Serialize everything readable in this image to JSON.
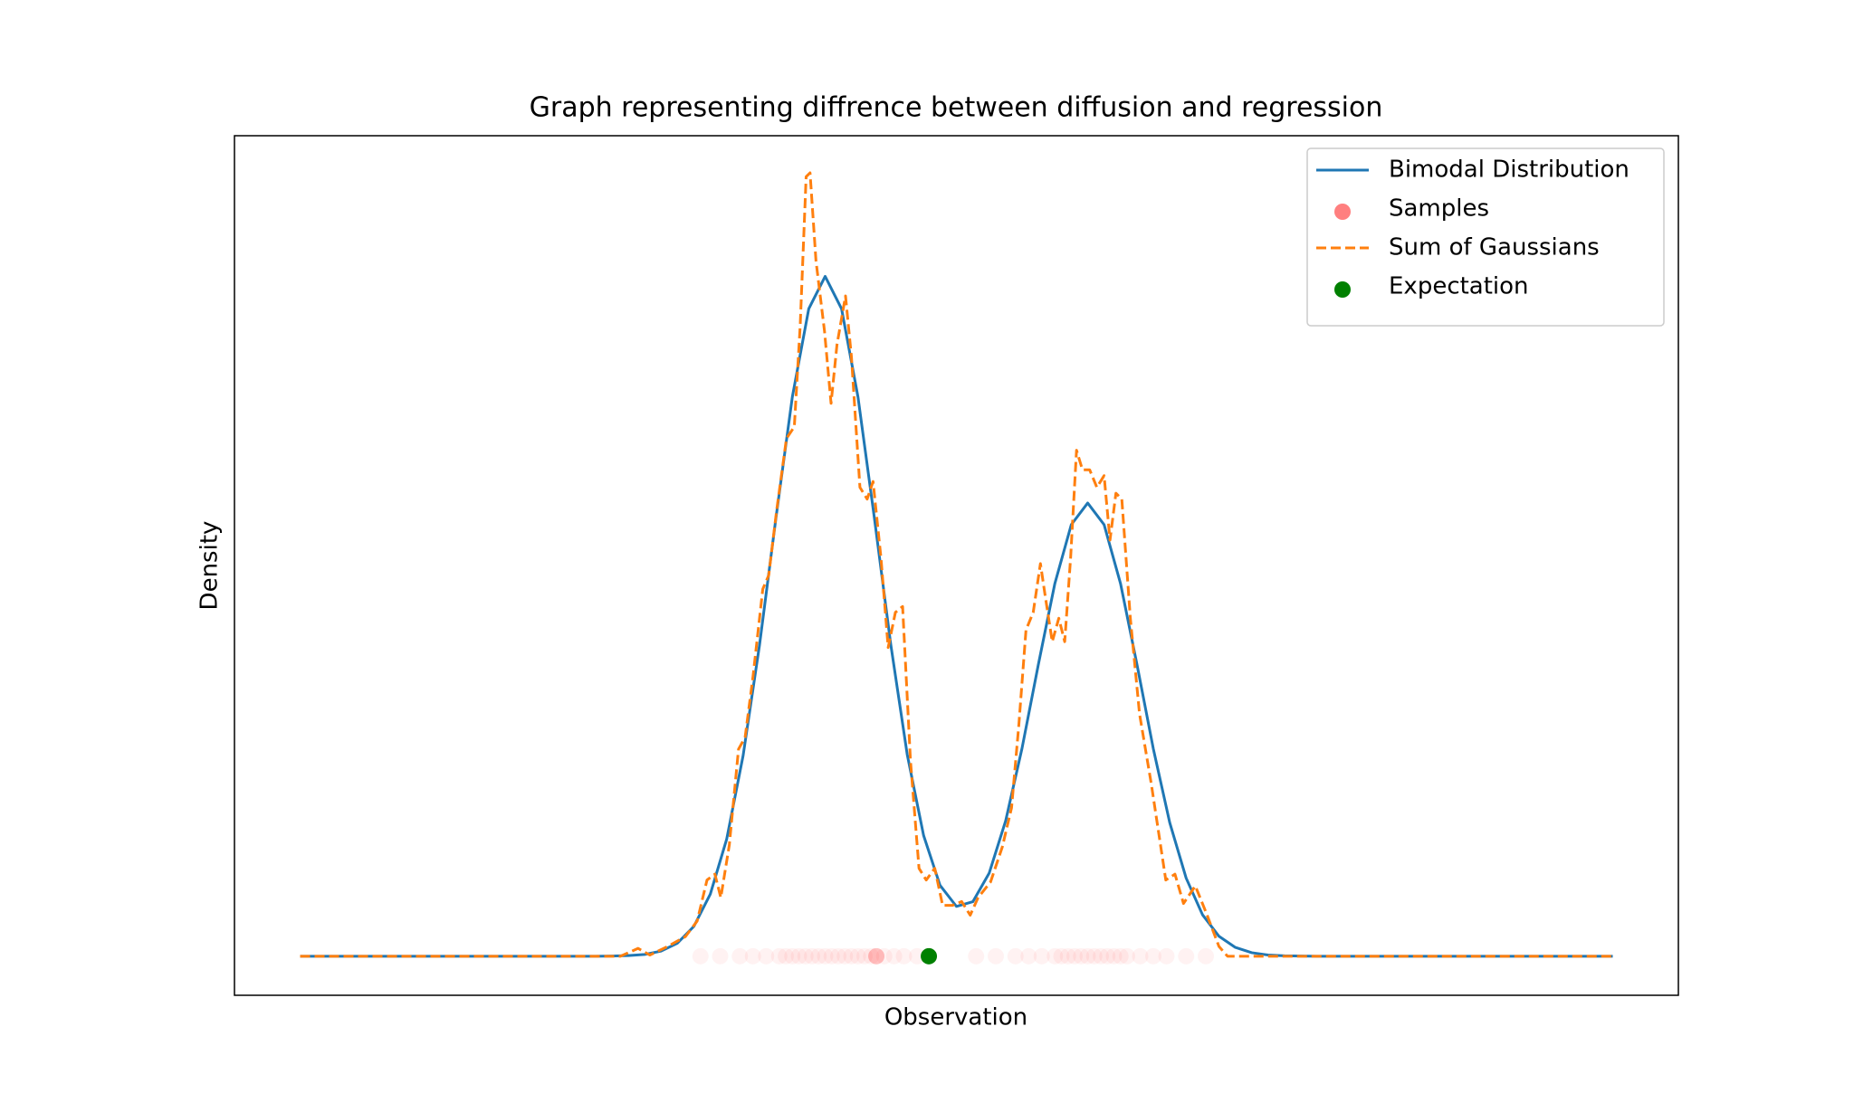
{
  "chart_data": {
    "type": "line",
    "title": "Graph representing diffrence between diffusion and regression",
    "x_label": "Observation",
    "y_label": "Density",
    "xlim": [
      -11,
      11
    ],
    "ylim": [
      -0.02,
      0.42
    ],
    "legend": "upper right",
    "series": [
      {
        "name": "Bimodal Distribution",
        "type": "line",
        "color": "#1f77b4",
        "dashed": false,
        "x": [
          -10,
          -5.5,
          -5.25,
          -5,
          -4.75,
          -4.5,
          -4.25,
          -4,
          -3.75,
          -3.5,
          -3.25,
          -3,
          -2.75,
          -2.5,
          -2.25,
          -2,
          -1.75,
          -1.5,
          -1.25,
          -1,
          -0.75,
          -0.5,
          -0.25,
          0,
          0.25,
          0.5,
          0.75,
          1,
          1.25,
          1.5,
          1.75,
          2,
          2.25,
          2.5,
          2.75,
          3,
          3.25,
          3.5,
          3.75,
          4,
          4.25,
          4.5,
          4.75,
          5,
          5.25,
          5.5,
          10
        ],
        "values": [
          0,
          0,
          0.0001,
          0.0003,
          0.0009,
          0.0026,
          0.0067,
          0.0153,
          0.0318,
          0.06,
          0.1027,
          0.1593,
          0.2243,
          0.2863,
          0.3314,
          0.348,
          0.3314,
          0.2863,
          0.2243,
          0.1595,
          0.1033,
          0.0618,
          0.0363,
          0.0255,
          0.0279,
          0.0426,
          0.0693,
          0.1065,
          0.1496,
          0.1908,
          0.2209,
          0.232,
          0.2209,
          0.1908,
          0.1495,
          0.1062,
          0.0684,
          0.04,
          0.0212,
          0.0102,
          0.0045,
          0.0018,
          0.0006,
          0.0002,
          0.0001,
          0,
          0
        ]
      },
      {
        "name": "Samples",
        "type": "scatter",
        "color": "#ff0000",
        "alpha": 0.05,
        "legend_alpha": 0.5,
        "x": [
          -3.9,
          -3.6,
          -3.3,
          -3.1,
          -2.9,
          -2.7,
          -2.6,
          -2.5,
          -2.4,
          -2.3,
          -2.2,
          -2.1,
          -2.0,
          -1.9,
          -1.8,
          -1.7,
          -1.6,
          -1.5,
          -1.4,
          -1.3,
          -1.22,
          -1.22,
          -1.22,
          -1.22,
          -1.22,
          -1.1,
          -0.95,
          -0.8,
          -0.6,
          0.3,
          0.6,
          0.9,
          1.1,
          1.3,
          1.5,
          1.6,
          1.7,
          1.8,
          1.9,
          2.0,
          2.1,
          2.2,
          2.3,
          2.4,
          2.5,
          2.6,
          2.8,
          3.0,
          3.2,
          3.5,
          3.8
        ],
        "values": [
          0,
          0,
          0,
          0,
          0,
          0,
          0,
          0,
          0,
          0,
          0,
          0,
          0,
          0,
          0,
          0,
          0,
          0,
          0,
          0,
          0,
          0,
          0,
          0,
          0,
          0,
          0,
          0,
          0,
          0,
          0,
          0,
          0,
          0,
          0,
          0,
          0,
          0,
          0,
          0,
          0,
          0,
          0,
          0,
          0,
          0,
          0,
          0,
          0,
          0,
          0
        ]
      },
      {
        "name": "Sum of Gaussians",
        "type": "line",
        "color": "#ff7f0e",
        "dashed": true,
        "x": [
          -10,
          -5.12,
          -4.85,
          -4.67,
          -4.4,
          -4.13,
          -3.95,
          -3.8,
          -3.68,
          -3.59,
          -3.46,
          -3.32,
          -3.22,
          -3.1,
          -2.95,
          -2.86,
          -2.74,
          -2.59,
          -2.47,
          -2.38,
          -2.29,
          -2.23,
          -2.14,
          -2.01,
          -1.91,
          -1.82,
          -1.69,
          -1.6,
          -1.47,
          -1.36,
          -1.27,
          -1.15,
          -1.04,
          -0.93,
          -0.82,
          -0.7,
          -0.57,
          -0.46,
          -0.33,
          -0.21,
          -0.06,
          0.08,
          0.21,
          0.33,
          0.52,
          0.7,
          0.84,
          0.95,
          1.06,
          1.17,
          1.28,
          1.35,
          1.46,
          1.56,
          1.65,
          1.74,
          1.83,
          1.92,
          2.03,
          2.14,
          2.25,
          2.34,
          2.43,
          2.52,
          2.65,
          2.79,
          2.97,
          3.19,
          3.33,
          3.46,
          3.64,
          3.82,
          4.0,
          4.13,
          10
        ],
        "values": [
          0,
          0,
          0.004,
          0.0006,
          0.005,
          0.01,
          0.018,
          0.039,
          0.042,
          0.03,
          0.057,
          0.106,
          0.112,
          0.143,
          0.188,
          0.195,
          0.228,
          0.265,
          0.271,
          0.323,
          0.399,
          0.401,
          0.356,
          0.32,
          0.283,
          0.313,
          0.338,
          0.307,
          0.24,
          0.234,
          0.243,
          0.204,
          0.158,
          0.176,
          0.179,
          0.1,
          0.045,
          0.039,
          0.045,
          0.026,
          0.026,
          0.028,
          0.021,
          0.03,
          0.038,
          0.056,
          0.076,
          0.118,
          0.167,
          0.176,
          0.201,
          0.185,
          0.161,
          0.173,
          0.161,
          0.204,
          0.259,
          0.249,
          0.249,
          0.24,
          0.246,
          0.213,
          0.237,
          0.234,
          0.173,
          0.124,
          0.088,
          0.039,
          0.042,
          0.027,
          0.036,
          0.021,
          0.005,
          0,
          0
        ]
      },
      {
        "name": "Expectation",
        "type": "scatter",
        "color": "#008000",
        "alpha": 1,
        "legend_alpha": 1,
        "x": [
          -0.42
        ],
        "values": [
          0
        ]
      }
    ]
  }
}
